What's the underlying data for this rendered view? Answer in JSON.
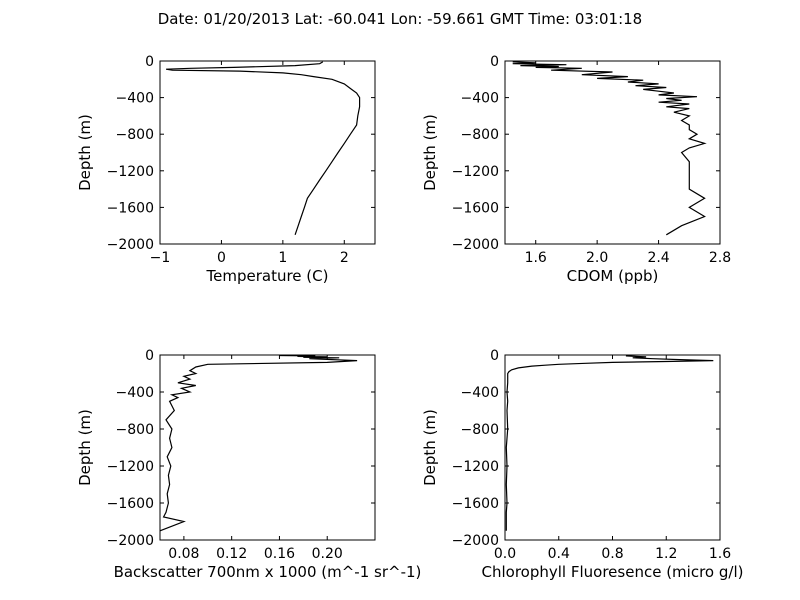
{
  "figure": {
    "title": "Date: 01/20/2013  Lat:  -60.041 Lon:  -59.661  GMT Time: 03:01:18"
  },
  "chart_data": [
    {
      "id": "temperature",
      "type": "line",
      "xlabel": "Temperature (C)",
      "ylabel": "Depth (m)",
      "xlim": [
        -1,
        2.5
      ],
      "ylim": [
        -2000,
        0
      ],
      "xticks": [
        -1,
        0,
        1,
        2
      ],
      "xtick_labels": [
        "−1",
        "0",
        "1",
        "2"
      ],
      "yticks": [
        0,
        -400,
        -800,
        -1200,
        -1600,
        -2000
      ],
      "ytick_labels": [
        "0",
        "−400",
        "−800",
        "−1200",
        "−1600",
        "−2000"
      ],
      "series": [
        {
          "x": [
            1.65,
            1.6,
            1.2,
            0.2,
            -0.5,
            -0.9,
            -0.8,
            0.3,
            1.0,
            1.3,
            1.5,
            1.8,
            2.0,
            2.1,
            2.2,
            2.25,
            2.25,
            2.22,
            2.2,
            2.1,
            2.0,
            1.9,
            1.8,
            1.7,
            1.6,
            1.5,
            1.4,
            1.35,
            1.3,
            1.25,
            1.2
          ],
          "y": [
            -10,
            -30,
            -50,
            -70,
            -80,
            -90,
            -100,
            -110,
            -130,
            -150,
            -170,
            -200,
            -250,
            -300,
            -350,
            -400,
            -500,
            -600,
            -700,
            -800,
            -900,
            -1000,
            -1100,
            -1200,
            -1300,
            -1400,
            -1500,
            -1600,
            -1700,
            -1800,
            -1900
          ]
        }
      ]
    },
    {
      "id": "cdom",
      "type": "line",
      "xlabel": "CDOM (ppb)",
      "ylabel": "Depth (m)",
      "xlim": [
        1.4,
        2.8
      ],
      "ylim": [
        -2000,
        0
      ],
      "xticks": [
        1.6,
        2.0,
        2.4,
        2.8
      ],
      "xtick_labels": [
        "1.6",
        "2.0",
        "2.4",
        "2.8"
      ],
      "yticks": [
        0,
        -400,
        -800,
        -1200,
        -1600,
        -2000
      ],
      "ytick_labels": [
        "0",
        "−400",
        "−800",
        "−1200",
        "−1600",
        "−2000"
      ],
      "series": [
        {
          "x": [
            1.45,
            1.6,
            1.45,
            1.8,
            1.5,
            1.75,
            1.6,
            1.9,
            1.7,
            2.1,
            1.9,
            2.2,
            2.0,
            2.3,
            2.2,
            2.4,
            2.25,
            2.45,
            2.3,
            2.4,
            2.5,
            2.4,
            2.65,
            2.45,
            2.55,
            2.4,
            2.6,
            2.45,
            2.6,
            2.5,
            2.6,
            2.55,
            2.6,
            2.6,
            2.65,
            2.6,
            2.7,
            2.6,
            2.55,
            2.6,
            2.6,
            2.6,
            2.6,
            2.7,
            2.6,
            2.7,
            2.55,
            2.45
          ],
          "y": [
            -10,
            -20,
            -30,
            -40,
            -50,
            -60,
            -70,
            -80,
            -100,
            -120,
            -150,
            -170,
            -190,
            -210,
            -230,
            -250,
            -270,
            -290,
            -310,
            -330,
            -350,
            -370,
            -390,
            -410,
            -430,
            -450,
            -470,
            -500,
            -520,
            -560,
            -600,
            -650,
            -700,
            -750,
            -800,
            -850,
            -900,
            -950,
            -1000,
            -1100,
            -1200,
            -1300,
            -1400,
            -1500,
            -1600,
            -1700,
            -1800,
            -1900
          ]
        }
      ]
    },
    {
      "id": "backscatter",
      "type": "line",
      "xlabel": "Backscatter 700nm x 1000 (m^-1 sr^-1)",
      "ylabel": "Depth (m)",
      "xlim": [
        0.06,
        0.24
      ],
      "ylim": [
        -2000,
        0
      ],
      "xticks": [
        0.08,
        0.12,
        0.16,
        0.2
      ],
      "xtick_labels": [
        "0.08",
        "0.12",
        "0.16",
        "0.20"
      ],
      "yticks": [
        0,
        -400,
        -800,
        -1200,
        -1600,
        -2000
      ],
      "ytick_labels": [
        "0",
        "−400",
        "−800",
        "−1200",
        "−1600",
        "−2000"
      ],
      "series": [
        {
          "x": [
            0.16,
            0.19,
            0.175,
            0.2,
            0.18,
            0.21,
            0.185,
            0.225,
            0.2,
            0.1,
            0.09,
            0.085,
            0.09,
            0.08,
            0.085,
            0.075,
            0.09,
            0.078,
            0.085,
            0.07,
            0.075,
            0.068,
            0.072,
            0.065,
            0.07,
            0.068,
            0.07,
            0.066,
            0.069,
            0.067,
            0.068,
            0.066,
            0.067,
            0.065,
            0.063,
            0.08,
            0.06
          ],
          "y": [
            -5,
            -10,
            -15,
            -20,
            -25,
            -30,
            -40,
            -60,
            -80,
            -100,
            -130,
            -170,
            -200,
            -230,
            -260,
            -300,
            -330,
            -360,
            -400,
            -430,
            -460,
            -500,
            -600,
            -700,
            -800,
            -900,
            -1000,
            -1100,
            -1200,
            -1300,
            -1400,
            -1500,
            -1600,
            -1700,
            -1750,
            -1800,
            -1900
          ]
        }
      ]
    },
    {
      "id": "chlorophyll",
      "type": "line",
      "xlabel": "Chlorophyll Fluoresence (micro g/l)",
      "ylabel": "Depth (m)",
      "xlim": [
        0,
        1.6
      ],
      "ylim": [
        -2000,
        0
      ],
      "xticks": [
        0,
        0.4,
        0.8,
        1.2,
        1.6
      ],
      "xtick_labels": [
        "0.0",
        "0.4",
        "0.8",
        "1.2",
        "1.6"
      ],
      "yticks": [
        0,
        -400,
        -800,
        -1200,
        -1600,
        -2000
      ],
      "ytick_labels": [
        "0",
        "−400",
        "−800",
        "−1200",
        "−1600",
        "−2000"
      ],
      "series": [
        {
          "x": [
            0.9,
            1.05,
            0.95,
            1.1,
            1.3,
            1.55,
            1.2,
            0.8,
            0.6,
            0.4,
            0.3,
            0.2,
            0.1,
            0.05,
            0.03,
            0.02,
            0.02,
            0.015,
            0.02,
            0.015,
            0.02,
            0.01,
            0.015,
            0.01,
            0.015,
            0.01,
            0.01,
            0.01
          ],
          "y": [
            -10,
            -20,
            -30,
            -40,
            -50,
            -60,
            -70,
            -80,
            -90,
            -100,
            -110,
            -120,
            -140,
            -160,
            -180,
            -200,
            -300,
            -400,
            -500,
            -600,
            -800,
            -1000,
            -1200,
            -1400,
            -1600,
            -1700,
            -1800,
            -1900
          ]
        }
      ]
    }
  ]
}
